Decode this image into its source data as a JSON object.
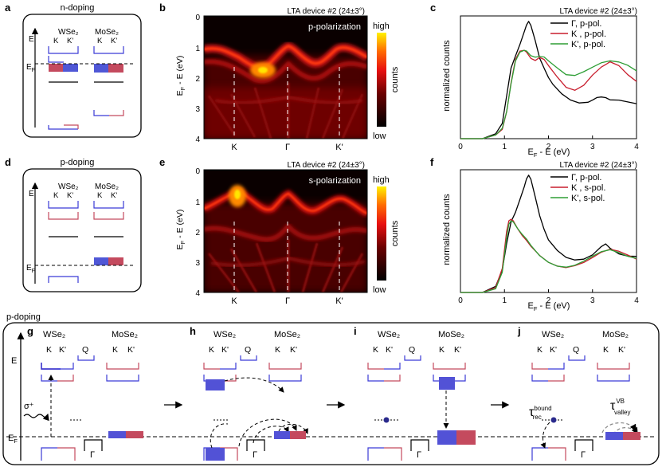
{
  "panels": {
    "a": {
      "letter": "a",
      "title": "n-doping",
      "mat1": "WSe₂",
      "mat2": "MoSe₂"
    },
    "b": {
      "letter": "b",
      "device": "LTA device #2 (24±3°)",
      "polarization": "p-polarization"
    },
    "c": {
      "letter": "c",
      "device": "LTA device #2 (24±3°)"
    },
    "d": {
      "letter": "d",
      "title": "p-doping",
      "mat1": "WSe₂",
      "mat2": "MoSe₂"
    },
    "e": {
      "letter": "e",
      "device": "LTA device #2 (24±3°)",
      "polarization": "s-polarization"
    },
    "f": {
      "letter": "f",
      "device": "LTA device #2 (24±3°)"
    },
    "bottom": {
      "title": "p-doping",
      "g": "g",
      "h": "h",
      "i": "i",
      "j": "j",
      "mat1": "WSe₂",
      "mat2": "MoSe₂"
    }
  },
  "labels": {
    "E": "E",
    "EF": "E",
    "EF_sub": "F",
    "K": "K",
    "Kp": "K'",
    "Q": "Q",
    "Gamma": "Γ",
    "sigma": "σ⁺",
    "tau": "τ",
    "tau_rec_sup": "bound",
    "tau_rec_sub": "rec",
    "tau_valley_sup": "VB",
    "tau_valley_sub": "valley",
    "ylabel_map": "Eₙ - E (eV)",
    "ylabel_counts": "normalized counts",
    "xlabel_spec": "Eₙ - E (eV)",
    "cb_high": "high",
    "cb_low": "low",
    "cb_label": "counts"
  },
  "chart_data": [
    {
      "type": "line",
      "panel": "c",
      "title": "LTA device #2 (24±3°)",
      "xlabel": "EF - E (eV)",
      "ylabel": "normalized counts",
      "xlim": [
        0,
        4
      ],
      "xticks": [
        "0",
        "1",
        "2",
        "3",
        "4"
      ],
      "legend": "top-right",
      "series": [
        {
          "name": "Γ, p-pol.",
          "color": "#000000",
          "x": [
            0,
            0.5,
            0.8,
            0.95,
            1.05,
            1.15,
            1.25,
            1.35,
            1.45,
            1.5,
            1.55,
            1.6,
            1.7,
            1.8,
            1.9,
            2.0,
            2.1,
            2.3,
            2.5,
            2.7,
            2.9,
            3.0,
            3.1,
            3.2,
            3.3,
            3.4,
            3.6,
            3.8,
            4.0
          ],
          "y": [
            0.0,
            0.0,
            0.04,
            0.12,
            0.35,
            0.58,
            0.68,
            0.77,
            0.87,
            0.92,
            0.95,
            0.92,
            0.8,
            0.66,
            0.58,
            0.5,
            0.44,
            0.36,
            0.31,
            0.29,
            0.3,
            0.32,
            0.34,
            0.34,
            0.33,
            0.31,
            0.31,
            0.3,
            0.29
          ]
        },
        {
          "name": "K , p-pol.",
          "color": "#c81e2e",
          "x": [
            0,
            0.5,
            0.8,
            0.95,
            1.05,
            1.15,
            1.25,
            1.35,
            1.45,
            1.5,
            1.6,
            1.7,
            1.8,
            1.9,
            2.0,
            2.2,
            2.4,
            2.6,
            2.8,
            3.0,
            3.2,
            3.4,
            3.6,
            3.8,
            4.0
          ],
          "y": [
            0.0,
            0.0,
            0.03,
            0.08,
            0.22,
            0.45,
            0.64,
            0.71,
            0.72,
            0.71,
            0.66,
            0.64,
            0.66,
            0.64,
            0.59,
            0.5,
            0.42,
            0.4,
            0.44,
            0.52,
            0.58,
            0.62,
            0.59,
            0.52,
            0.47
          ]
        },
        {
          "name": "K', p-pol.",
          "color": "#2e9e35",
          "x": [
            0,
            0.5,
            0.8,
            0.95,
            1.05,
            1.15,
            1.25,
            1.35,
            1.45,
            1.5,
            1.6,
            1.7,
            1.8,
            1.9,
            2.0,
            2.2,
            2.4,
            2.6,
            2.8,
            3.0,
            3.2,
            3.4,
            3.6,
            3.8,
            4.0
          ],
          "y": [
            0.0,
            0.0,
            0.03,
            0.08,
            0.22,
            0.45,
            0.64,
            0.71,
            0.72,
            0.71,
            0.67,
            0.66,
            0.67,
            0.67,
            0.64,
            0.58,
            0.52,
            0.51,
            0.54,
            0.58,
            0.62,
            0.64,
            0.63,
            0.6,
            0.55
          ]
        }
      ]
    },
    {
      "type": "line",
      "panel": "f",
      "title": "LTA device #2 (24±3°)",
      "xlabel": "EF - E (eV)",
      "ylabel": "normalized counts",
      "xlim": [
        0,
        4
      ],
      "xticks": [
        "0",
        "1",
        "2",
        "3",
        "4"
      ],
      "legend": "top-right",
      "series": [
        {
          "name": "Γ, p-pol.",
          "color": "#000000",
          "x": [
            0,
            0.5,
            0.8,
            0.95,
            1.05,
            1.15,
            1.25,
            1.35,
            1.45,
            1.5,
            1.55,
            1.6,
            1.7,
            1.8,
            1.9,
            2.0,
            2.2,
            2.4,
            2.6,
            2.8,
            3.0,
            3.2,
            3.3,
            3.4,
            3.6,
            3.8,
            4.0
          ],
          "y": [
            0.0,
            0.0,
            0.05,
            0.18,
            0.4,
            0.58,
            0.66,
            0.76,
            0.86,
            0.92,
            0.95,
            0.92,
            0.78,
            0.63,
            0.52,
            0.43,
            0.34,
            0.28,
            0.26,
            0.27,
            0.31,
            0.38,
            0.4,
            0.36,
            0.31,
            0.29,
            0.29
          ]
        },
        {
          "name": "K , s-pol.",
          "color": "#c81e2e",
          "x": [
            0,
            0.5,
            0.8,
            0.95,
            1.05,
            1.1,
            1.15,
            1.2,
            1.3,
            1.4,
            1.5,
            1.6,
            1.8,
            2.0,
            2.2,
            2.4,
            2.6,
            2.8,
            3.0,
            3.2,
            3.4,
            3.6,
            3.8,
            4.0
          ],
          "y": [
            0.0,
            0.0,
            0.04,
            0.2,
            0.5,
            0.58,
            0.59,
            0.58,
            0.52,
            0.47,
            0.43,
            0.38,
            0.3,
            0.24,
            0.21,
            0.2,
            0.22,
            0.25,
            0.29,
            0.33,
            0.35,
            0.33,
            0.3,
            0.27
          ]
        },
        {
          "name": "K', s-pol.",
          "color": "#2e9e35",
          "x": [
            0,
            0.5,
            0.8,
            0.95,
            1.05,
            1.1,
            1.15,
            1.2,
            1.3,
            1.4,
            1.5,
            1.6,
            1.8,
            2.0,
            2.2,
            2.4,
            2.6,
            2.8,
            3.0,
            3.2,
            3.4,
            3.6,
            3.8,
            4.0
          ],
          "y": [
            0.0,
            0.0,
            0.03,
            0.16,
            0.45,
            0.56,
            0.59,
            0.58,
            0.52,
            0.47,
            0.43,
            0.38,
            0.3,
            0.25,
            0.22,
            0.21,
            0.22,
            0.25,
            0.29,
            0.33,
            0.35,
            0.33,
            0.3,
            0.28
          ]
        }
      ]
    }
  ]
}
